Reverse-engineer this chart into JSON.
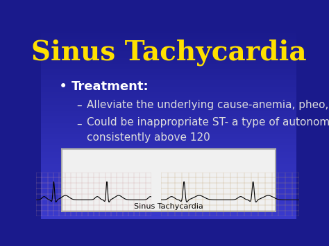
{
  "title": "Sinus Tachycardia",
  "title_color": "#FFE000",
  "title_fontsize": 28,
  "title_fontstyle": "bold",
  "bg_color_top": "#1a1a8c",
  "bg_color_bottom": "#3a3acd",
  "bullet_text": "Treatment:",
  "bullet_color": "#FFFFFF",
  "bullet_fontsize": 13,
  "sub_bullet1": "Alleviate the underlying cause-anemia, pheo, hyperthyroid…",
  "sub_bullet2_line1": "Could be inappropriate ST- a type of autonomic dysfunction with HR",
  "sub_bullet2_line2": "consistently above 120",
  "sub_bullet_color": "#DDDDDD",
  "sub_bullet_fontsize": 11,
  "ecg_box_color": "#F0F0F0",
  "ecg_label": "Sinus Tachycardia",
  "ecg_label_color": "#000000",
  "ecg_label_fontsize": 8
}
